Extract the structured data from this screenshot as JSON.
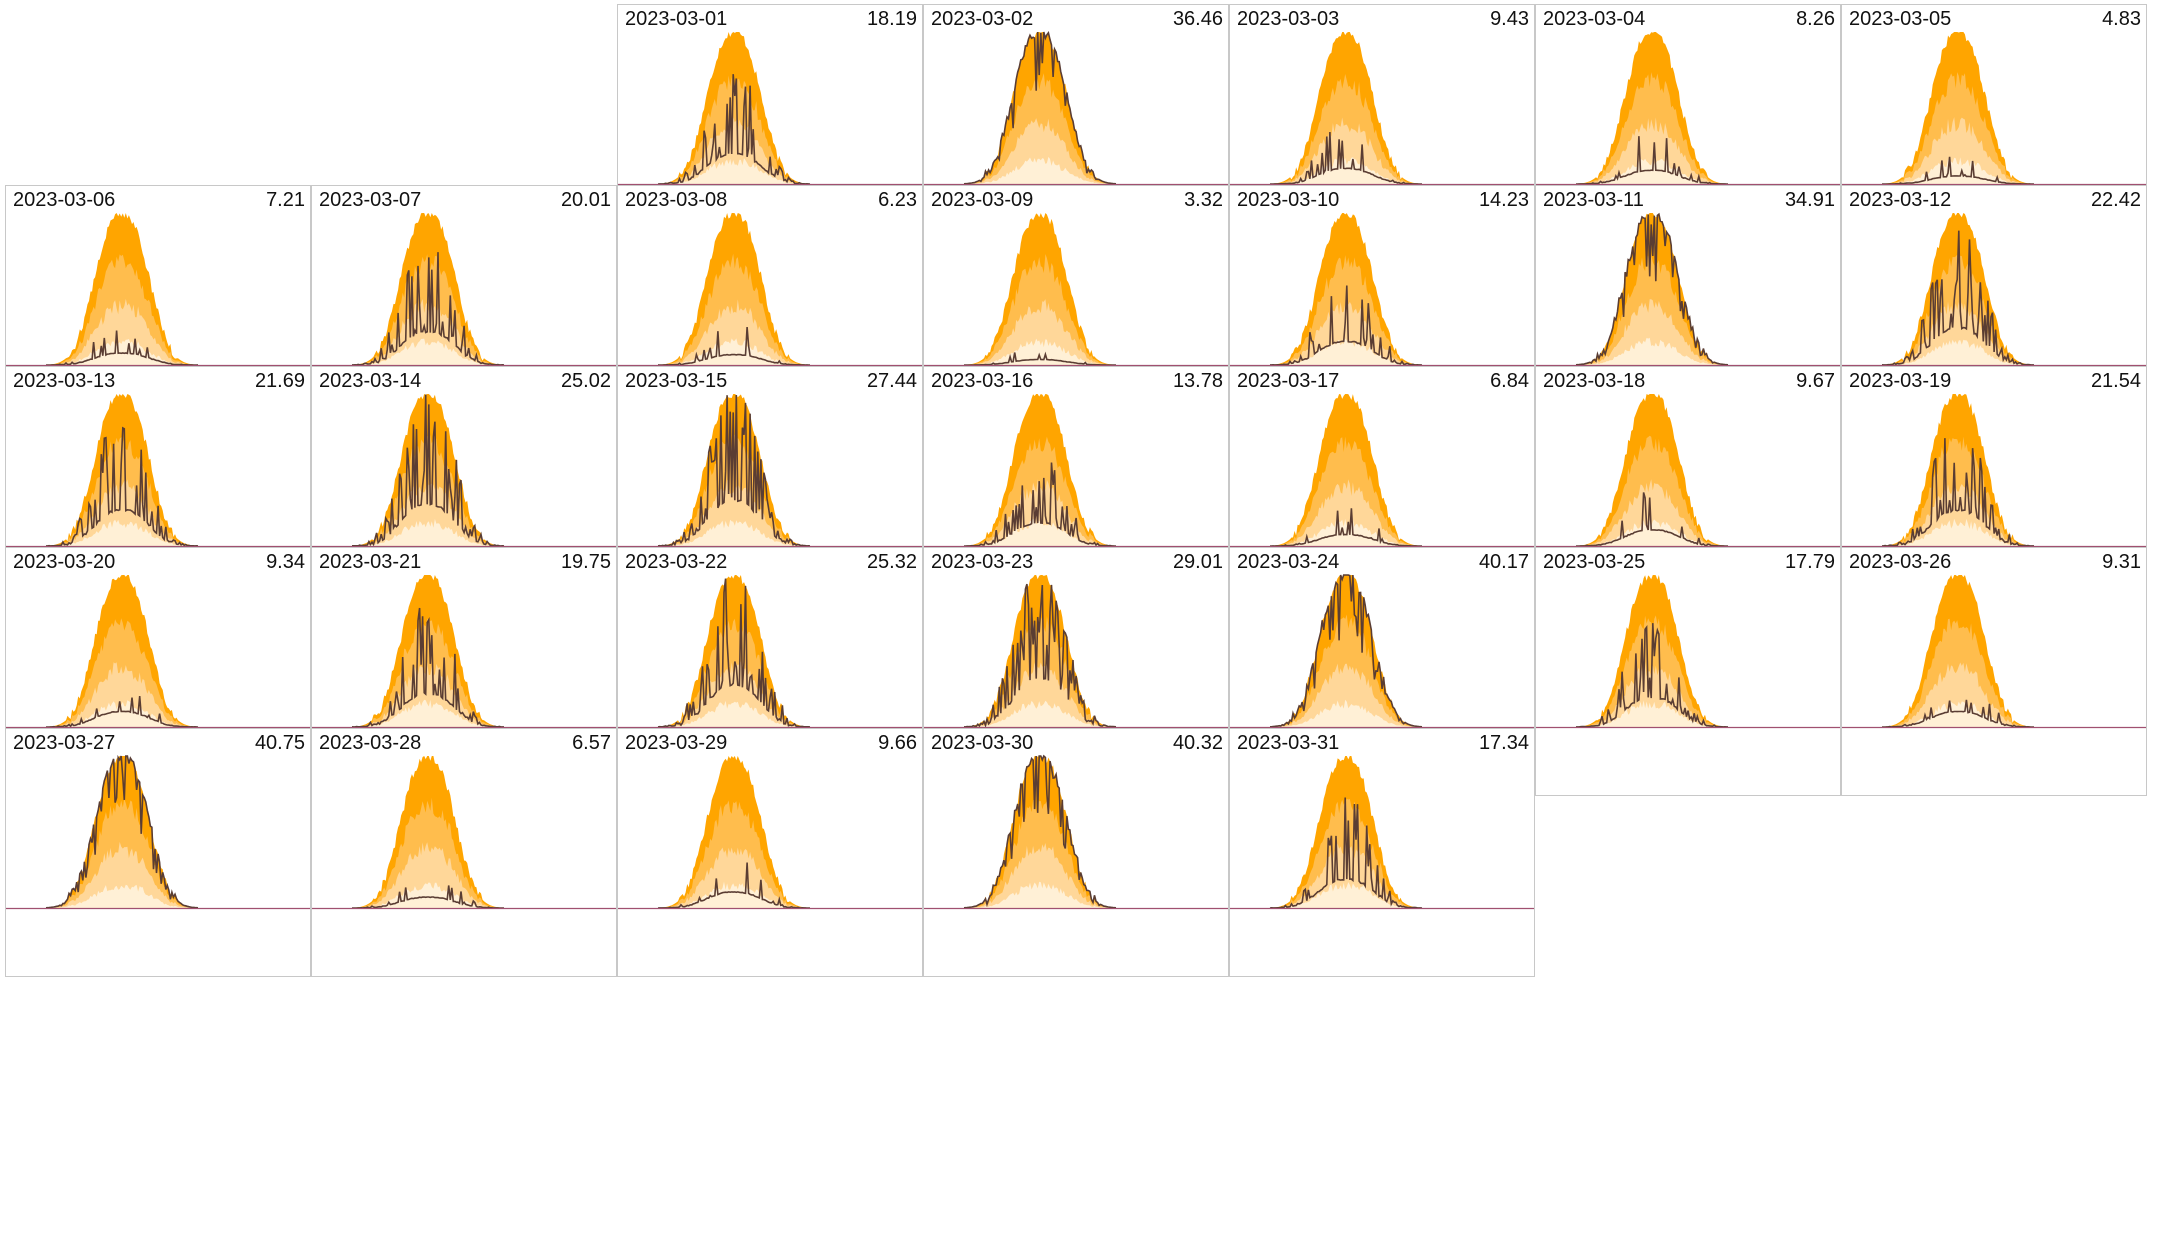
{
  "chart_data": {
    "type": "area",
    "layout": "calendar small multiples",
    "colors": {
      "band_outer": "#ffa500",
      "band_mid": "#ffbd4d",
      "band_inner": "#ffd799",
      "band_core": "#fff0d6",
      "actual_line": "#5a3d33",
      "baseline": "#a05070",
      "panel_border": "#c8c8c8"
    },
    "panels": [
      {
        "date": "2023-03-01",
        "total": "18.19",
        "week": 0,
        "weekday": 2
      },
      {
        "date": "2023-03-02",
        "total": "36.46",
        "week": 0,
        "weekday": 3
      },
      {
        "date": "2023-03-03",
        "total": "9.43",
        "week": 0,
        "weekday": 4
      },
      {
        "date": "2023-03-04",
        "total": "8.26",
        "week": 0,
        "weekday": 5
      },
      {
        "date": "2023-03-05",
        "total": "4.83",
        "week": 0,
        "weekday": 6
      },
      {
        "date": "2023-03-06",
        "total": "7.21",
        "week": 1,
        "weekday": 0
      },
      {
        "date": "2023-03-07",
        "total": "20.01",
        "week": 1,
        "weekday": 1
      },
      {
        "date": "2023-03-08",
        "total": "6.23",
        "week": 1,
        "weekday": 2
      },
      {
        "date": "2023-03-09",
        "total": "3.32",
        "week": 1,
        "weekday": 3
      },
      {
        "date": "2023-03-10",
        "total": "14.23",
        "week": 1,
        "weekday": 4
      },
      {
        "date": "2023-03-11",
        "total": "34.91",
        "week": 1,
        "weekday": 5
      },
      {
        "date": "2023-03-12",
        "total": "22.42",
        "week": 1,
        "weekday": 6
      },
      {
        "date": "2023-03-13",
        "total": "21.69",
        "week": 2,
        "weekday": 0
      },
      {
        "date": "2023-03-14",
        "total": "25.02",
        "week": 2,
        "weekday": 1
      },
      {
        "date": "2023-03-15",
        "total": "27.44",
        "week": 2,
        "weekday": 2
      },
      {
        "date": "2023-03-16",
        "total": "13.78",
        "week": 2,
        "weekday": 3
      },
      {
        "date": "2023-03-17",
        "total": "6.84",
        "week": 2,
        "weekday": 4
      },
      {
        "date": "2023-03-18",
        "total": "9.67",
        "week": 2,
        "weekday": 5
      },
      {
        "date": "2023-03-19",
        "total": "21.54",
        "week": 2,
        "weekday": 6
      },
      {
        "date": "2023-03-20",
        "total": "9.34",
        "week": 3,
        "weekday": 0
      },
      {
        "date": "2023-03-21",
        "total": "19.75",
        "week": 3,
        "weekday": 1
      },
      {
        "date": "2023-03-22",
        "total": "25.32",
        "week": 3,
        "weekday": 2
      },
      {
        "date": "2023-03-23",
        "total": "29.01",
        "week": 3,
        "weekday": 3
      },
      {
        "date": "2023-03-24",
        "total": "40.17",
        "week": 3,
        "weekday": 4
      },
      {
        "date": "2023-03-25",
        "total": "17.79",
        "week": 3,
        "weekday": 5
      },
      {
        "date": "2023-03-26",
        "total": "9.31",
        "week": 3,
        "weekday": 6
      },
      {
        "date": "2023-03-27",
        "total": "40.75",
        "week": 4,
        "weekday": 0
      },
      {
        "date": "2023-03-28",
        "total": "6.57",
        "week": 4,
        "weekday": 1
      },
      {
        "date": "2023-03-29",
        "total": "9.66",
        "week": 4,
        "weekday": 2
      },
      {
        "date": "2023-03-30",
        "total": "40.32",
        "week": 4,
        "weekday": 3
      },
      {
        "date": "2023-03-31",
        "total": "17.34",
        "week": 4,
        "weekday": 4
      }
    ]
  }
}
